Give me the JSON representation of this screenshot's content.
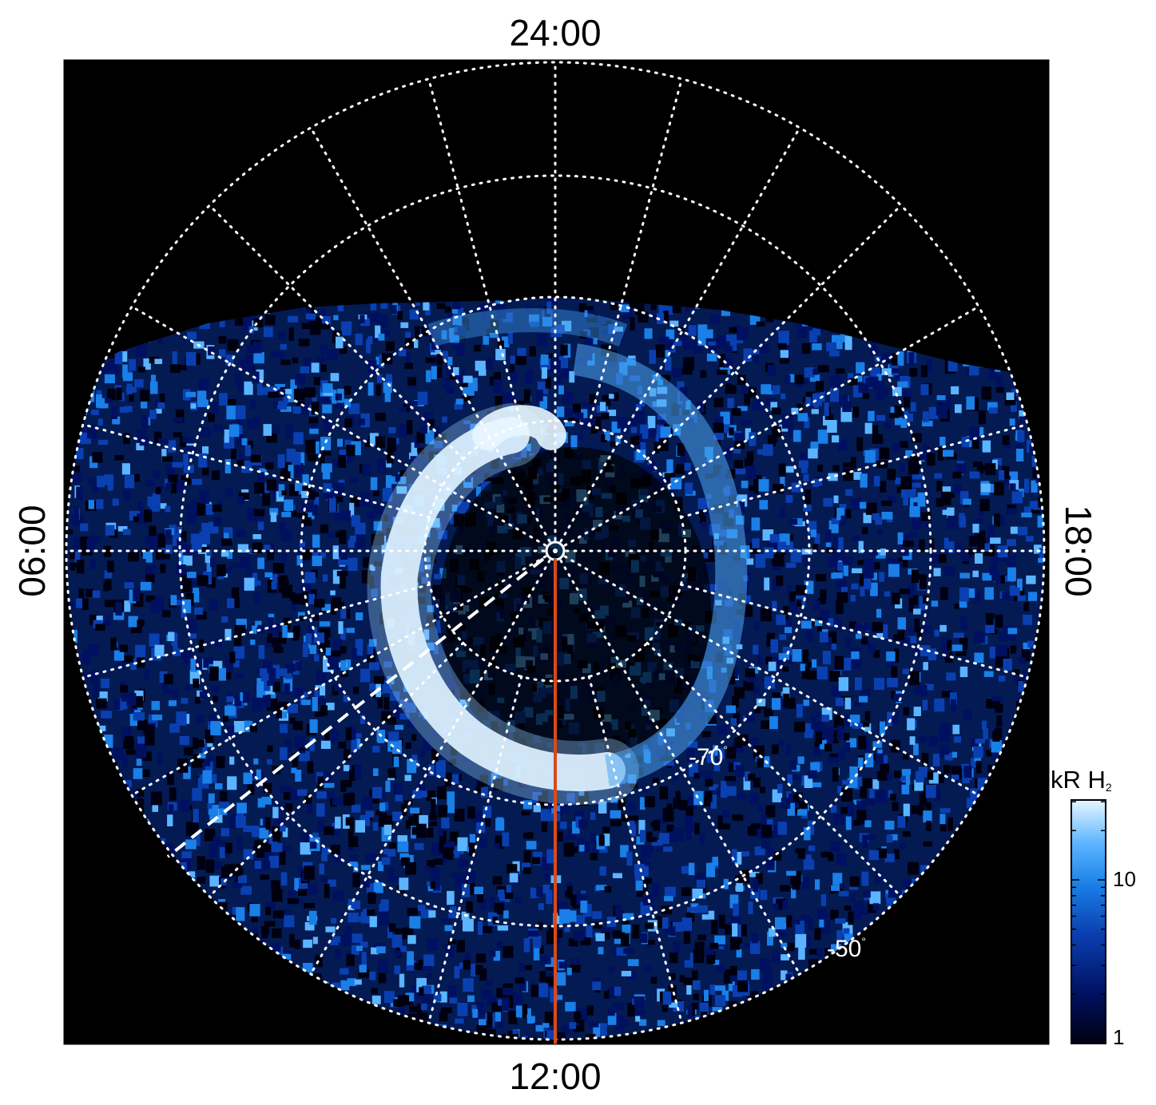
{
  "image": {
    "description_free": true,
    "background": "#000000",
    "panel_border": "#ffffff"
  },
  "local_time_labels": {
    "top": "24:00",
    "bottom": "12:00",
    "left": "06:00",
    "right": "18:00"
  },
  "latitude_labels": {
    "inner": "-70",
    "outer": "-50",
    "degree_mark": "°"
  },
  "colorbar": {
    "title_main": "kR H",
    "title_sub": "2",
    "ticks": [
      "10",
      "1"
    ],
    "colors": [
      "#000010",
      "#001060",
      "#0a3fb0",
      "#1a7fe6",
      "#5bb4ff",
      "#d8f0ff"
    ]
  },
  "overlay": {
    "meridian_color": "#d94a1a",
    "dashed_color": "#ffffff"
  }
}
